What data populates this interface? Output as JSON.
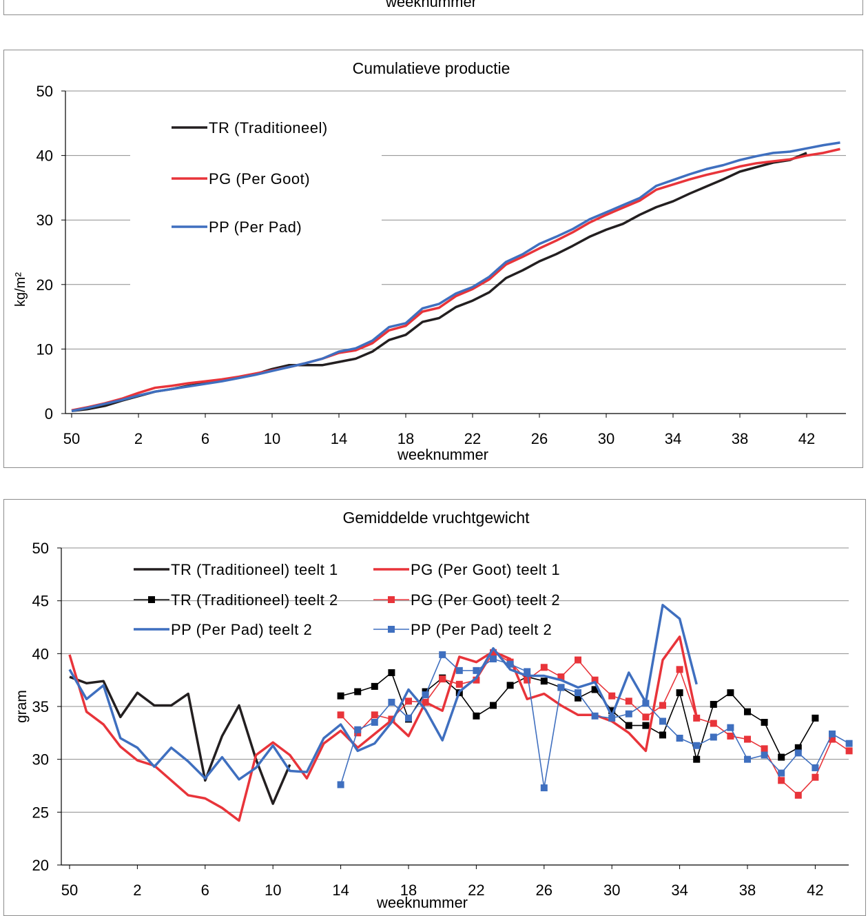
{
  "top_fragment": {
    "xlabel": "weeknummer"
  },
  "chart_data": [
    {
      "type": "line",
      "title": "Cumulatieve productie",
      "xlabel": "weeknummer",
      "ylabel": "kg/m²",
      "ylim": [
        0,
        50
      ],
      "yticks": [
        0,
        10,
        20,
        30,
        40,
        50
      ],
      "x": [
        "50",
        "51",
        "52",
        "1",
        "2",
        "3",
        "4",
        "5",
        "6",
        "7",
        "8",
        "9",
        "10",
        "11",
        "12",
        "13",
        "14",
        "15",
        "16",
        "17",
        "18",
        "19",
        "20",
        "21",
        "22",
        "23",
        "24",
        "25",
        "26",
        "27",
        "28",
        "29",
        "30",
        "31",
        "32",
        "33",
        "34",
        "35",
        "36",
        "37",
        "38",
        "39",
        "40",
        "41",
        "42",
        "43",
        "44",
        "45"
      ],
      "xticks": [
        "50",
        "2",
        "6",
        "10",
        "14",
        "18",
        "22",
        "26",
        "30",
        "34",
        "38",
        "42"
      ],
      "grid": "horizontal",
      "legend": "top-left",
      "series": [
        {
          "name": "TR (Traditioneel)",
          "color": "#231f20",
          "values": [
            0.4,
            0.7,
            1.2,
            2.0,
            2.7,
            3.4,
            3.8,
            4.3,
            4.7,
            5.1,
            5.6,
            6.1,
            6.9,
            7.5,
            7.5,
            7.5,
            8.0,
            8.5,
            9.6,
            11.4,
            12.2,
            14.2,
            14.8,
            16.5,
            17.5,
            18.8,
            21.0,
            22.2,
            23.6,
            24.7,
            26.0,
            27.4,
            28.5,
            29.4,
            30.8,
            32.0,
            32.9,
            34.1,
            35.2,
            36.3,
            37.5,
            38.2,
            38.9,
            39.3,
            40.4,
            null,
            null,
            null
          ]
        },
        {
          "name": "PG (Per Goot)",
          "color": "#e8343a",
          "values": [
            0.5,
            1.0,
            1.6,
            2.3,
            3.2,
            4.0,
            4.3,
            4.7,
            5.0,
            5.3,
            5.7,
            6.2,
            6.7,
            7.2,
            7.8,
            8.5,
            9.4,
            9.8,
            10.9,
            12.9,
            13.6,
            15.8,
            16.4,
            18.2,
            19.3,
            20.8,
            23.1,
            24.3,
            25.6,
            26.8,
            28.1,
            29.6,
            30.8,
            31.9,
            33.0,
            34.7,
            35.5,
            36.3,
            37.0,
            37.6,
            38.3,
            38.8,
            39.1,
            39.4,
            40.0,
            40.4,
            41.0,
            null
          ]
        },
        {
          "name": "PP (Per Pad)",
          "color": "#3f6fbf",
          "values": [
            0.4,
            0.9,
            1.5,
            2.1,
            2.8,
            3.4,
            3.8,
            4.2,
            4.6,
            5.0,
            5.5,
            6.0,
            6.6,
            7.2,
            7.8,
            8.5,
            9.6,
            10.1,
            11.3,
            13.4,
            14.0,
            16.3,
            17.0,
            18.6,
            19.6,
            21.2,
            23.5,
            24.7,
            26.3,
            27.4,
            28.6,
            30.1,
            31.2,
            32.3,
            33.4,
            35.3,
            36.2,
            37.1,
            37.9,
            38.5,
            39.3,
            39.9,
            40.4,
            40.6,
            41.1,
            41.6,
            42.0,
            null
          ]
        }
      ]
    },
    {
      "type": "line",
      "title": "Gemiddelde vruchtgewicht",
      "xlabel": "weeknummer",
      "ylabel": "gram",
      "ylim": [
        20,
        50
      ],
      "yticks": [
        20,
        25,
        30,
        35,
        40,
        45,
        50
      ],
      "x": [
        "50",
        "51",
        "52",
        "1",
        "2",
        "3",
        "4",
        "5",
        "6",
        "7",
        "8",
        "9",
        "10",
        "11",
        "12",
        "13",
        "14",
        "15",
        "16",
        "17",
        "18",
        "19",
        "20",
        "21",
        "22",
        "23",
        "24",
        "25",
        "26",
        "27",
        "28",
        "29",
        "30",
        "31",
        "32",
        "33",
        "34",
        "35",
        "36",
        "37",
        "38",
        "39",
        "40",
        "41",
        "42",
        "43",
        "44",
        "45"
      ],
      "xticks": [
        "50",
        "2",
        "6",
        "10",
        "14",
        "18",
        "22",
        "26",
        "30",
        "34",
        "38",
        "42"
      ],
      "grid": "horizontal",
      "legend": "top-left",
      "series": [
        {
          "name": "TR (Traditioneel) teelt 1",
          "color": "#231f20",
          "marker": "none",
          "values": [
            37.8,
            37.2,
            37.4,
            34.0,
            36.3,
            35.1,
            35.1,
            36.2,
            28.0,
            32.2,
            35.1,
            30.0,
            25.8,
            29.5,
            null,
            null,
            null,
            null,
            null,
            null,
            null,
            null,
            null,
            null,
            null,
            null,
            null,
            null,
            null,
            null,
            null,
            null,
            null,
            null,
            null,
            null,
            null,
            null,
            null,
            null,
            null,
            null,
            null,
            null,
            null,
            null,
            null,
            null
          ]
        },
        {
          "name": "TR (Traditioneel) teelt 2",
          "color": "#000000",
          "marker": "square",
          "values": [
            null,
            null,
            null,
            null,
            null,
            null,
            null,
            null,
            null,
            null,
            null,
            null,
            null,
            null,
            null,
            null,
            36.0,
            36.4,
            36.9,
            38.2,
            33.8,
            36.4,
            37.7,
            36.3,
            34.1,
            35.1,
            37.0,
            37.8,
            37.4,
            36.8,
            35.8,
            36.6,
            34.6,
            33.2,
            33.2,
            32.3,
            36.3,
            30.0,
            35.2,
            36.3,
            34.5,
            33.5,
            30.2,
            31.1,
            33.9,
            null,
            null,
            null
          ]
        },
        {
          "name": "PG (Per Goot) teelt 1",
          "color": "#e8343a",
          "marker": "none",
          "values": [
            39.9,
            34.5,
            33.3,
            31.2,
            29.9,
            29.4,
            28.0,
            26.6,
            26.3,
            25.4,
            24.2,
            30.4,
            31.6,
            30.4,
            28.2,
            31.5,
            32.7,
            31.1,
            32.4,
            33.7,
            32.2,
            35.4,
            34.6,
            39.7,
            39.2,
            40.2,
            39.5,
            35.7,
            36.2,
            35.1,
            34.2,
            34.2,
            33.6,
            32.5,
            30.8,
            39.4,
            41.6,
            34.0,
            null,
            null,
            null,
            null,
            null,
            null,
            null,
            null,
            null,
            null
          ]
        },
        {
          "name": "PG (Per Goot) teelt 2",
          "color": "#e8343a",
          "marker": "square",
          "values": [
            null,
            null,
            null,
            null,
            null,
            null,
            null,
            null,
            null,
            null,
            null,
            null,
            null,
            null,
            null,
            null,
            34.2,
            32.5,
            34.2,
            33.8,
            35.5,
            35.4,
            37.6,
            37.1,
            37.5,
            40.1,
            39.2,
            37.5,
            38.7,
            37.8,
            39.4,
            37.5,
            36.0,
            35.5,
            34.0,
            35.1,
            38.5,
            33.9,
            33.4,
            32.2,
            31.9,
            31.0,
            28.0,
            26.6,
            28.3,
            31.9,
            30.8,
            null
          ]
        },
        {
          "name": "PP (Per Pad) teelt 2",
          "color": "#3f6fbf",
          "marker": "none",
          "values": [
            38.5,
            35.7,
            37.0,
            32.0,
            31.1,
            29.3,
            31.1,
            29.8,
            28.2,
            30.2,
            28.1,
            29.2,
            31.3,
            28.9,
            28.8,
            32.0,
            33.3,
            30.8,
            31.5,
            33.5,
            36.6,
            34.7,
            31.8,
            36.4,
            37.7,
            40.5,
            38.5,
            37.9,
            37.9,
            37.5,
            36.8,
            37.3,
            34.1,
            38.2,
            35.4,
            44.6,
            43.3,
            37.1,
            null,
            null,
            null,
            null,
            null,
            null,
            null,
            null,
            null,
            null
          ]
        },
        {
          "name": "PP (Per Pad) teelt 2",
          "color": "#3f6fbf",
          "marker": "square",
          "values": [
            null,
            null,
            null,
            null,
            null,
            null,
            null,
            null,
            null,
            null,
            null,
            null,
            null,
            null,
            null,
            null,
            27.6,
            32.8,
            33.5,
            35.4,
            33.9,
            36.1,
            39.9,
            38.4,
            38.4,
            39.5,
            39.0,
            38.3,
            27.3,
            36.8,
            36.3,
            34.1,
            33.9,
            34.3,
            35.3,
            33.6,
            32.0,
            31.3,
            32.1,
            33.0,
            30.0,
            30.4,
            28.7,
            30.6,
            29.2,
            32.4,
            31.5,
            null
          ]
        }
      ]
    }
  ]
}
